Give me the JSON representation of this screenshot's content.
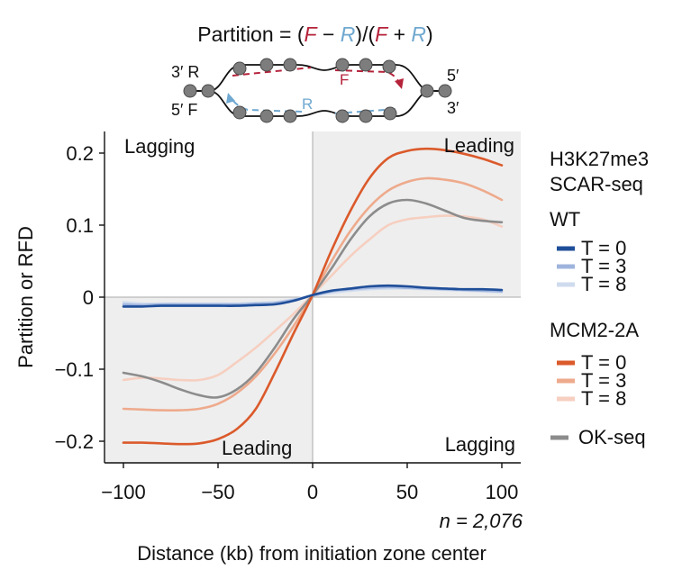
{
  "formula": {
    "prefix": "Partition = (",
    "F1": "F",
    "minus": " − ",
    "R1": "R",
    "mid": ")/(",
    "F2": "F",
    "plus": " + ",
    "R2": "R",
    "suffix": ")"
  },
  "schematic": {
    "left_top": "3′ R",
    "left_bottom": "5′ F",
    "right_top": "5′",
    "right_bottom": "3′",
    "label_F": "F",
    "label_R": "R"
  },
  "colors": {
    "wt_t0": "#1f4e99",
    "wt_t3": "#9fb4dc",
    "wt_t8": "#cfdbee",
    "mcm_t0": "#db5a2b",
    "mcm_t3": "#eeaa8c",
    "mcm_t8": "#f6cfc0",
    "okseq": "#8c8c8c",
    "shade": "#eeeeee",
    "forward": "#b5223a",
    "reverse": "#6fa8d0"
  },
  "chart_data": {
    "type": "line",
    "xlabel": "Distance (kb) from initiation zone center",
    "ylabel": "Partition or RFD",
    "xlim": [
      -110,
      110
    ],
    "ylim": [
      -0.23,
      0.23
    ],
    "xticks": [
      -100,
      -50,
      0,
      50,
      100
    ],
    "xtick_labels": [
      "−100",
      "−50",
      "0",
      "50",
      "100"
    ],
    "yticks": [
      0.2,
      0.1,
      0,
      -0.1,
      -0.2
    ],
    "ytick_labels": [
      "0.2",
      "0.1",
      "0",
      "−0.1",
      "−0.2"
    ],
    "n_label": "n = 2,076",
    "region_labels": {
      "top_left": "Lagging",
      "top_right": "Leading",
      "bottom_left": "Leading",
      "bottom_right": "Lagging"
    },
    "legend": {
      "title1": "H3K27me3",
      "title2": "SCAR-seq",
      "wt_header": "WT",
      "mcm_header": "MCM2-2A",
      "okseq_label": "OK-seq",
      "t0": "T = 0",
      "t3": "T = 3",
      "t8": "T = 8"
    },
    "x": [
      -100,
      -90,
      -80,
      -70,
      -60,
      -50,
      -40,
      -30,
      -20,
      -10,
      0,
      10,
      20,
      30,
      40,
      50,
      60,
      70,
      80,
      90,
      100
    ],
    "series": [
      {
        "name": "WT T = 0",
        "group": "WT",
        "color_key": "wt_t0",
        "values": [
          -0.013,
          -0.013,
          -0.012,
          -0.012,
          -0.012,
          -0.012,
          -0.012,
          -0.011,
          -0.01,
          -0.005,
          0.003,
          0.009,
          0.012,
          0.015,
          0.016,
          0.015,
          0.013,
          0.012,
          0.011,
          0.011,
          0.01
        ]
      },
      {
        "name": "WT T = 3",
        "group": "WT",
        "color_key": "wt_t3",
        "values": [
          -0.01,
          -0.011,
          -0.01,
          -0.01,
          -0.01,
          -0.01,
          -0.01,
          -0.009,
          -0.008,
          -0.004,
          0.002,
          0.008,
          0.011,
          0.013,
          0.014,
          0.013,
          0.012,
          0.011,
          0.01,
          0.009,
          0.008
        ]
      },
      {
        "name": "WT T = 8",
        "group": "WT",
        "color_key": "wt_t8",
        "values": [
          -0.007,
          -0.009,
          -0.009,
          -0.009,
          -0.009,
          -0.009,
          -0.009,
          -0.008,
          -0.007,
          -0.003,
          0.002,
          0.006,
          0.009,
          0.011,
          0.012,
          0.012,
          0.011,
          0.01,
          0.009,
          0.008,
          0.007
        ]
      },
      {
        "name": "MCM2-2A T = 0",
        "group": "MCM2-2A",
        "color_key": "mcm_t0",
        "values": [
          -0.202,
          -0.202,
          -0.203,
          -0.204,
          -0.203,
          -0.197,
          -0.183,
          -0.155,
          -0.105,
          -0.05,
          0.003,
          0.065,
          0.12,
          0.165,
          0.193,
          0.203,
          0.206,
          0.204,
          0.199,
          0.192,
          0.183
        ]
      },
      {
        "name": "MCM2-2A T = 3",
        "group": "MCM2-2A",
        "color_key": "mcm_t3",
        "values": [
          -0.155,
          -0.156,
          -0.157,
          -0.157,
          -0.155,
          -0.148,
          -0.133,
          -0.11,
          -0.078,
          -0.04,
          0.003,
          0.05,
          0.092,
          0.125,
          0.148,
          0.16,
          0.165,
          0.163,
          0.158,
          0.148,
          0.135
        ]
      },
      {
        "name": "MCM2-2A T = 8",
        "group": "MCM2-2A",
        "color_key": "mcm_t8",
        "values": [
          -0.115,
          -0.112,
          -0.113,
          -0.115,
          -0.115,
          -0.108,
          -0.09,
          -0.07,
          -0.047,
          -0.023,
          0.003,
          0.03,
          0.057,
          0.08,
          0.1,
          0.108,
          0.111,
          0.113,
          0.112,
          0.108,
          0.098
        ]
      },
      {
        "name": "OK-seq",
        "group": "OK-seq",
        "color_key": "okseq",
        "values": [
          -0.105,
          -0.11,
          -0.118,
          -0.128,
          -0.136,
          -0.139,
          -0.128,
          -0.105,
          -0.07,
          -0.03,
          0.003,
          0.04,
          0.08,
          0.112,
          0.13,
          0.135,
          0.13,
          0.12,
          0.11,
          0.106,
          0.104
        ]
      }
    ]
  }
}
